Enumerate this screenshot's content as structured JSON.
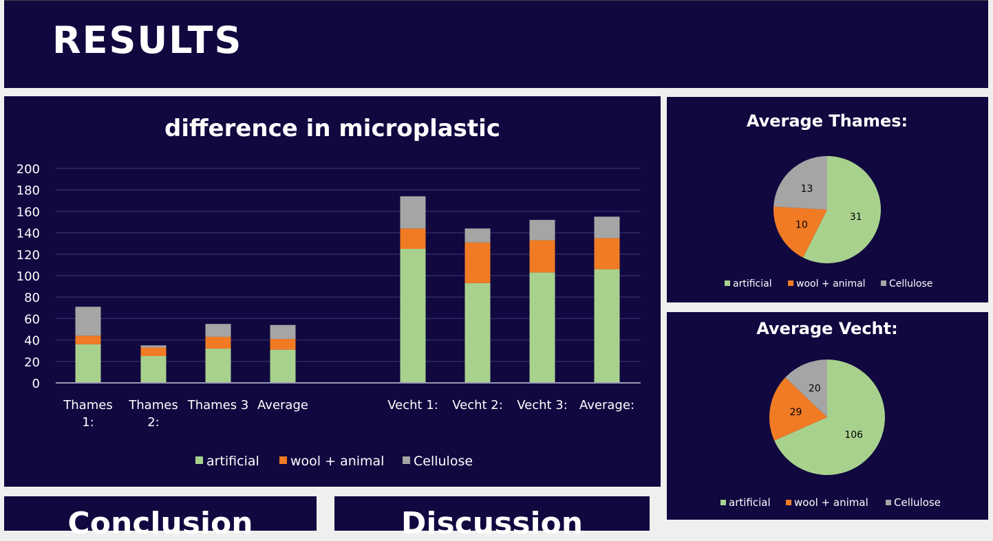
{
  "header": {
    "title": "RESULTS"
  },
  "bottom": {
    "conclusion": "Conclusion",
    "discussion": "Discussion"
  },
  "colors": {
    "artificial": "#a9d18e",
    "wool": "#f07b24",
    "cellulose": "#a5a5a5",
    "panel": "#10083f"
  },
  "chart_data": [
    {
      "type": "bar",
      "stacked": true,
      "title": "difference in microplastic",
      "categories": [
        "Thames 1:",
        "Thames 2:",
        "Thames 3",
        "Average",
        "Vecht 1:",
        "Vecht 2:",
        "Vecht 3:",
        "Average:"
      ],
      "series": [
        {
          "name": "artificial",
          "values": [
            36,
            25,
            32,
            31,
            125,
            93,
            103,
            106
          ]
        },
        {
          "name": "wool + animal",
          "values": [
            8,
            8,
            11,
            10,
            19,
            38,
            30,
            29
          ]
        },
        {
          "name": "Cellulose",
          "values": [
            27,
            2,
            12,
            13,
            30,
            13,
            19,
            20
          ]
        }
      ],
      "ylim": [
        0,
        200
      ],
      "yticks": [
        0,
        20,
        40,
        60,
        80,
        100,
        120,
        140,
        160,
        180,
        200
      ],
      "grid": true,
      "legend": "bottom"
    },
    {
      "type": "pie",
      "title": "Average Thames:",
      "labels": [
        "artificial",
        "wool + animal",
        "Cellulose"
      ],
      "values": [
        31,
        10,
        13
      ],
      "legend": "bottom"
    },
    {
      "type": "pie",
      "title": "Average Vecht:",
      "labels": [
        "artificial",
        "wool + animal",
        "Cellulose"
      ],
      "values": [
        106,
        29,
        20
      ],
      "legend": "bottom"
    }
  ]
}
